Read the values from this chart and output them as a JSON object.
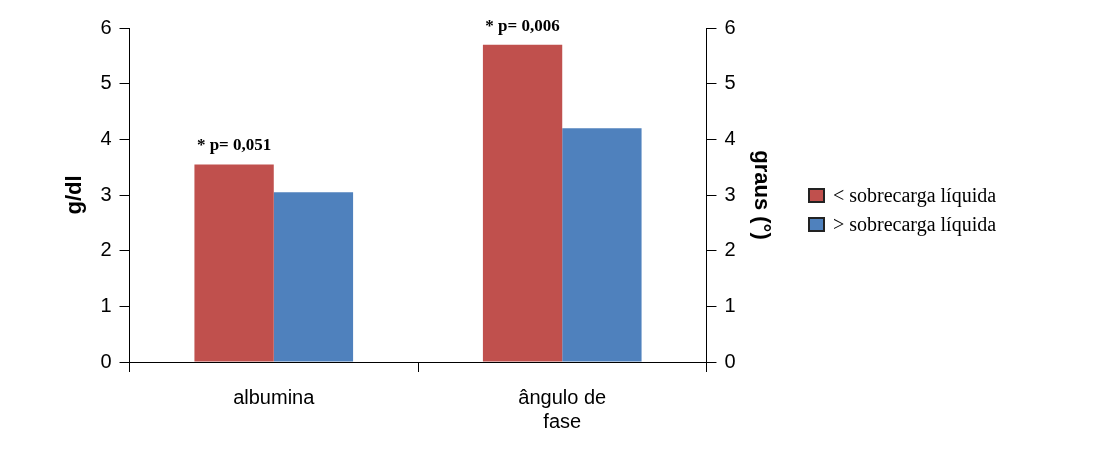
{
  "chart_data": {
    "type": "bar",
    "categories": [
      "albumina",
      "ângulo de fase"
    ],
    "series": [
      {
        "name": "< sobrecarga líquida",
        "color": "#c0504d",
        "values": [
          3.55,
          5.7
        ]
      },
      {
        "name": "> sobrecarga líquida",
        "color": "#4f81bd",
        "values": [
          3.05,
          4.2
        ]
      }
    ],
    "ylabel": "g/dl",
    "y2label": "graus (°)",
    "ylim": [
      0,
      6
    ],
    "yticks": [
      0,
      1,
      2,
      3,
      4,
      5,
      6
    ],
    "y2lim": [
      0,
      6
    ],
    "y2ticks": [
      0,
      1,
      2,
      3,
      4,
      5,
      6
    ],
    "annotations": [
      {
        "text": "* p= 0,051",
        "x": "albumina",
        "y": 3.55
      },
      {
        "text": "* p= 0,006",
        "x": "ângulo de fase",
        "y": 5.7
      }
    ],
    "grid": false,
    "legend": "right"
  }
}
